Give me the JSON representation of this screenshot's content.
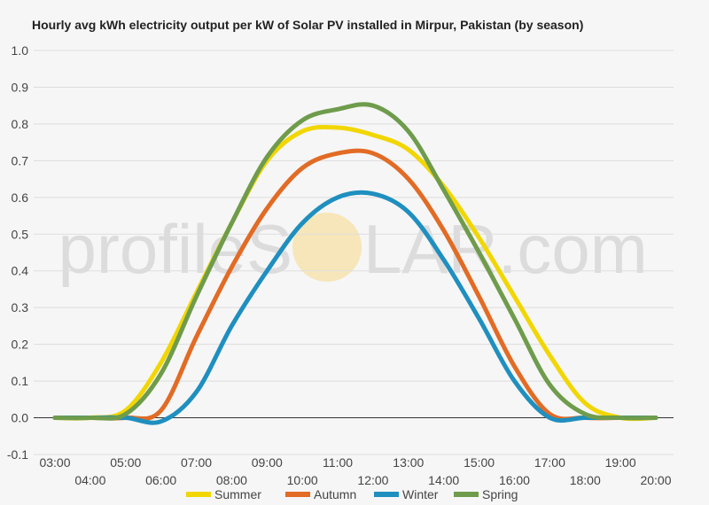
{
  "watermark": {
    "left": "profileS",
    "right": "LAR.com",
    "sun_color": "#f6e6b9"
  },
  "chart_data": {
    "type": "line",
    "title": "Hourly avg kWh electricity output per kW of Solar PV installed in Mirpur, Pakistan (by season)",
    "xlabel": "",
    "ylabel": "",
    "x": [
      "03:00",
      "04:00",
      "05:00",
      "06:00",
      "07:00",
      "08:00",
      "09:00",
      "10:00",
      "11:00",
      "12:00",
      "13:00",
      "14:00",
      "15:00",
      "16:00",
      "17:00",
      "18:00",
      "19:00",
      "20:00"
    ],
    "x_label_row": [
      0,
      1,
      0,
      1,
      0,
      1,
      0,
      1,
      0,
      1,
      0,
      1,
      0,
      1,
      0,
      1,
      0,
      1
    ],
    "ylim": [
      -0.1,
      1.0
    ],
    "yticks": [
      "1.0",
      "0.9",
      "0.8",
      "0.7",
      "0.6",
      "0.5",
      "0.4",
      "0.3",
      "0.2",
      "0.1",
      "0.0",
      "-0.1"
    ],
    "grid": true,
    "legend_position": "bottom",
    "series": [
      {
        "name": "Summer",
        "color": "#f2d600",
        "values": [
          0.0,
          0.0,
          0.02,
          0.15,
          0.34,
          0.53,
          0.7,
          0.78,
          0.79,
          0.77,
          0.73,
          0.63,
          0.49,
          0.33,
          0.17,
          0.04,
          0.0,
          0.0
        ]
      },
      {
        "name": "Autumn",
        "color": "#e26b25",
        "values": [
          0.0,
          0.0,
          0.0,
          0.02,
          0.22,
          0.41,
          0.57,
          0.68,
          0.72,
          0.72,
          0.65,
          0.51,
          0.33,
          0.14,
          0.01,
          0.0,
          0.0,
          0.0
        ]
      },
      {
        "name": "Winter",
        "color": "#1f8fbf",
        "values": [
          0.0,
          0.0,
          0.0,
          -0.01,
          0.07,
          0.25,
          0.4,
          0.53,
          0.6,
          0.61,
          0.56,
          0.43,
          0.27,
          0.1,
          0.0,
          0.0,
          0.0,
          0.0
        ]
      },
      {
        "name": "Spring",
        "color": "#6f9c4c",
        "values": [
          0.0,
          0.0,
          0.01,
          0.12,
          0.33,
          0.53,
          0.71,
          0.81,
          0.84,
          0.85,
          0.78,
          0.62,
          0.45,
          0.27,
          0.09,
          0.01,
          0.0,
          0.0
        ]
      }
    ]
  }
}
